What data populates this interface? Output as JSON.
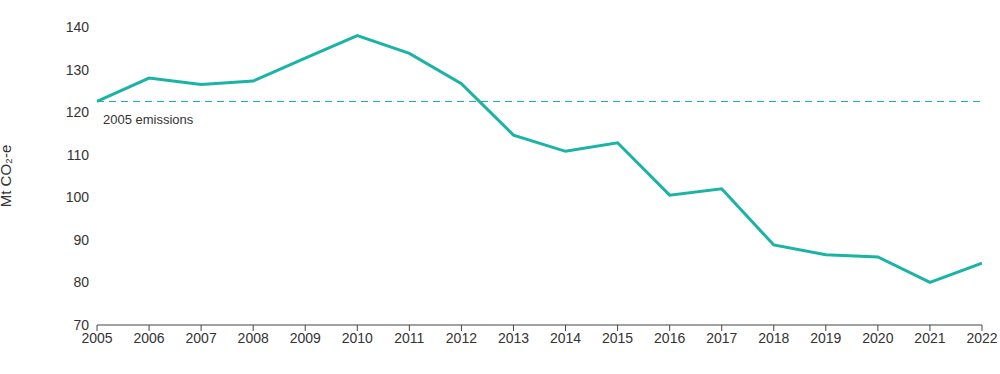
{
  "chart_data": {
    "type": "line",
    "y_label": "Mt CO₂-e",
    "x": [
      2005,
      2006,
      2007,
      2008,
      2009,
      2010,
      2011,
      2012,
      2013,
      2014,
      2015,
      2016,
      2017,
      2018,
      2019,
      2020,
      2021,
      2022
    ],
    "values": [
      122.5,
      128,
      126.5,
      127.3,
      132.7,
      138,
      133.8,
      126.7,
      114.6,
      110.8,
      112.8,
      100.5,
      102,
      88.8,
      86.5,
      86,
      80,
      84.5
    ],
    "color": "#1ab3a6",
    "xlim": [
      2005,
      2022
    ],
    "xticks": [
      2005,
      2006,
      2007,
      2008,
      2009,
      2010,
      2011,
      2012,
      2013,
      2014,
      2015,
      2016,
      2017,
      2018,
      2019,
      2020,
      2021,
      2022
    ],
    "ylim": [
      70,
      140
    ],
    "yticks": [
      70,
      80,
      90,
      100,
      110,
      120,
      130,
      140
    ],
    "grid": false,
    "reference_line": {
      "value": 122.5,
      "label": "2005 emissions",
      "line_style": "dashed"
    }
  }
}
